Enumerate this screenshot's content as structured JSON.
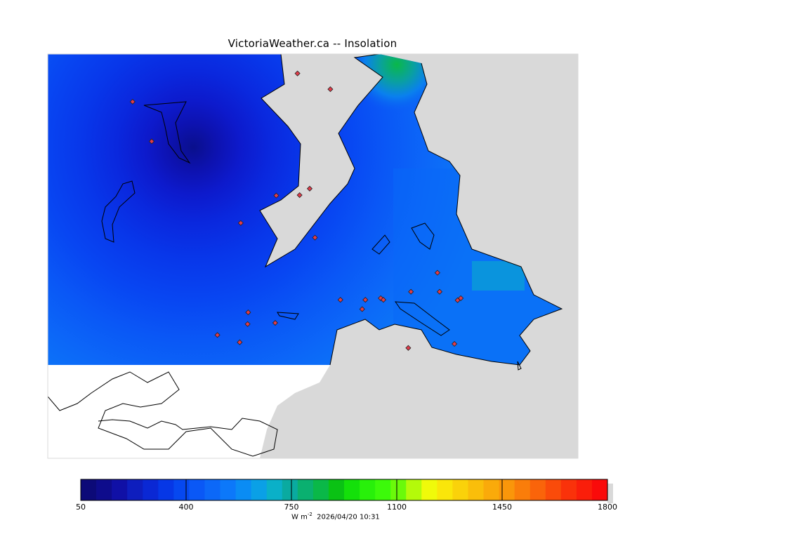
{
  "title": "VictoriaWeather.ca -- Insolation",
  "colorbar": {
    "min": 50,
    "max": 1800,
    "tick_labels": [
      "50",
      "400",
      "750",
      "1100",
      "1450",
      "1800"
    ],
    "tick_values": [
      50,
      400,
      750,
      1100,
      1450,
      1800
    ],
    "colors": [
      "#0c0a78",
      "#0e0c8c",
      "#1010a6",
      "#0e1ebe",
      "#0a28d4",
      "#0637e6",
      "#0648f0",
      "#0a58f6",
      "#0c68f8",
      "#0c78fa",
      "#0a8cf4",
      "#0aa0e6",
      "#0ab0c8",
      "#0aaaa0",
      "#0ab070",
      "#0ab848",
      "#0ac214",
      "#14e00a",
      "#28f00a",
      "#3cfa0a",
      "#6afa0a",
      "#b4fa0a",
      "#f0fa0a",
      "#fae60a",
      "#fad20a",
      "#fabe0a",
      "#faaa0a",
      "#fa960a",
      "#fa7d0a",
      "#fa640a",
      "#fa4b0a",
      "#fa320a",
      "#fa1e0a",
      "#fa0a0a"
    ],
    "units": "W m",
    "units_exponent": "-2",
    "timestamp": "2026/04/20 10:31"
  },
  "map": {
    "variable": "Insolation",
    "land_color": "#d9d9d9",
    "station_marker_color": "#e23c4a",
    "stations": [
      {
        "lon": 0.16,
        "lat": 0.118
      },
      {
        "lon": 0.196,
        "lat": 0.216
      },
      {
        "lon": 0.471,
        "lat": 0.048
      },
      {
        "lon": 0.533,
        "lat": 0.087
      },
      {
        "lon": 0.494,
        "lat": 0.333
      },
      {
        "lon": 0.475,
        "lat": 0.349
      },
      {
        "lon": 0.431,
        "lat": 0.35
      },
      {
        "lon": 0.364,
        "lat": 0.418
      },
      {
        "lon": 0.504,
        "lat": 0.454
      },
      {
        "lon": 0.378,
        "lat": 0.639
      },
      {
        "lon": 0.377,
        "lat": 0.668
      },
      {
        "lon": 0.429,
        "lat": 0.665
      },
      {
        "lon": 0.552,
        "lat": 0.608
      },
      {
        "lon": 0.599,
        "lat": 0.608
      },
      {
        "lon": 0.628,
        "lat": 0.604
      },
      {
        "lon": 0.633,
        "lat": 0.608
      },
      {
        "lon": 0.593,
        "lat": 0.631
      },
      {
        "lon": 0.685,
        "lat": 0.588
      },
      {
        "lon": 0.735,
        "lat": 0.541
      },
      {
        "lon": 0.739,
        "lat": 0.588
      },
      {
        "lon": 0.773,
        "lat": 0.609
      },
      {
        "lon": 0.779,
        "lat": 0.604
      },
      {
        "lon": 0.68,
        "lat": 0.727
      },
      {
        "lon": 0.767,
        "lat": 0.717
      },
      {
        "lon": 0.32,
        "lat": 0.695
      },
      {
        "lon": 0.362,
        "lat": 0.713
      }
    ]
  }
}
